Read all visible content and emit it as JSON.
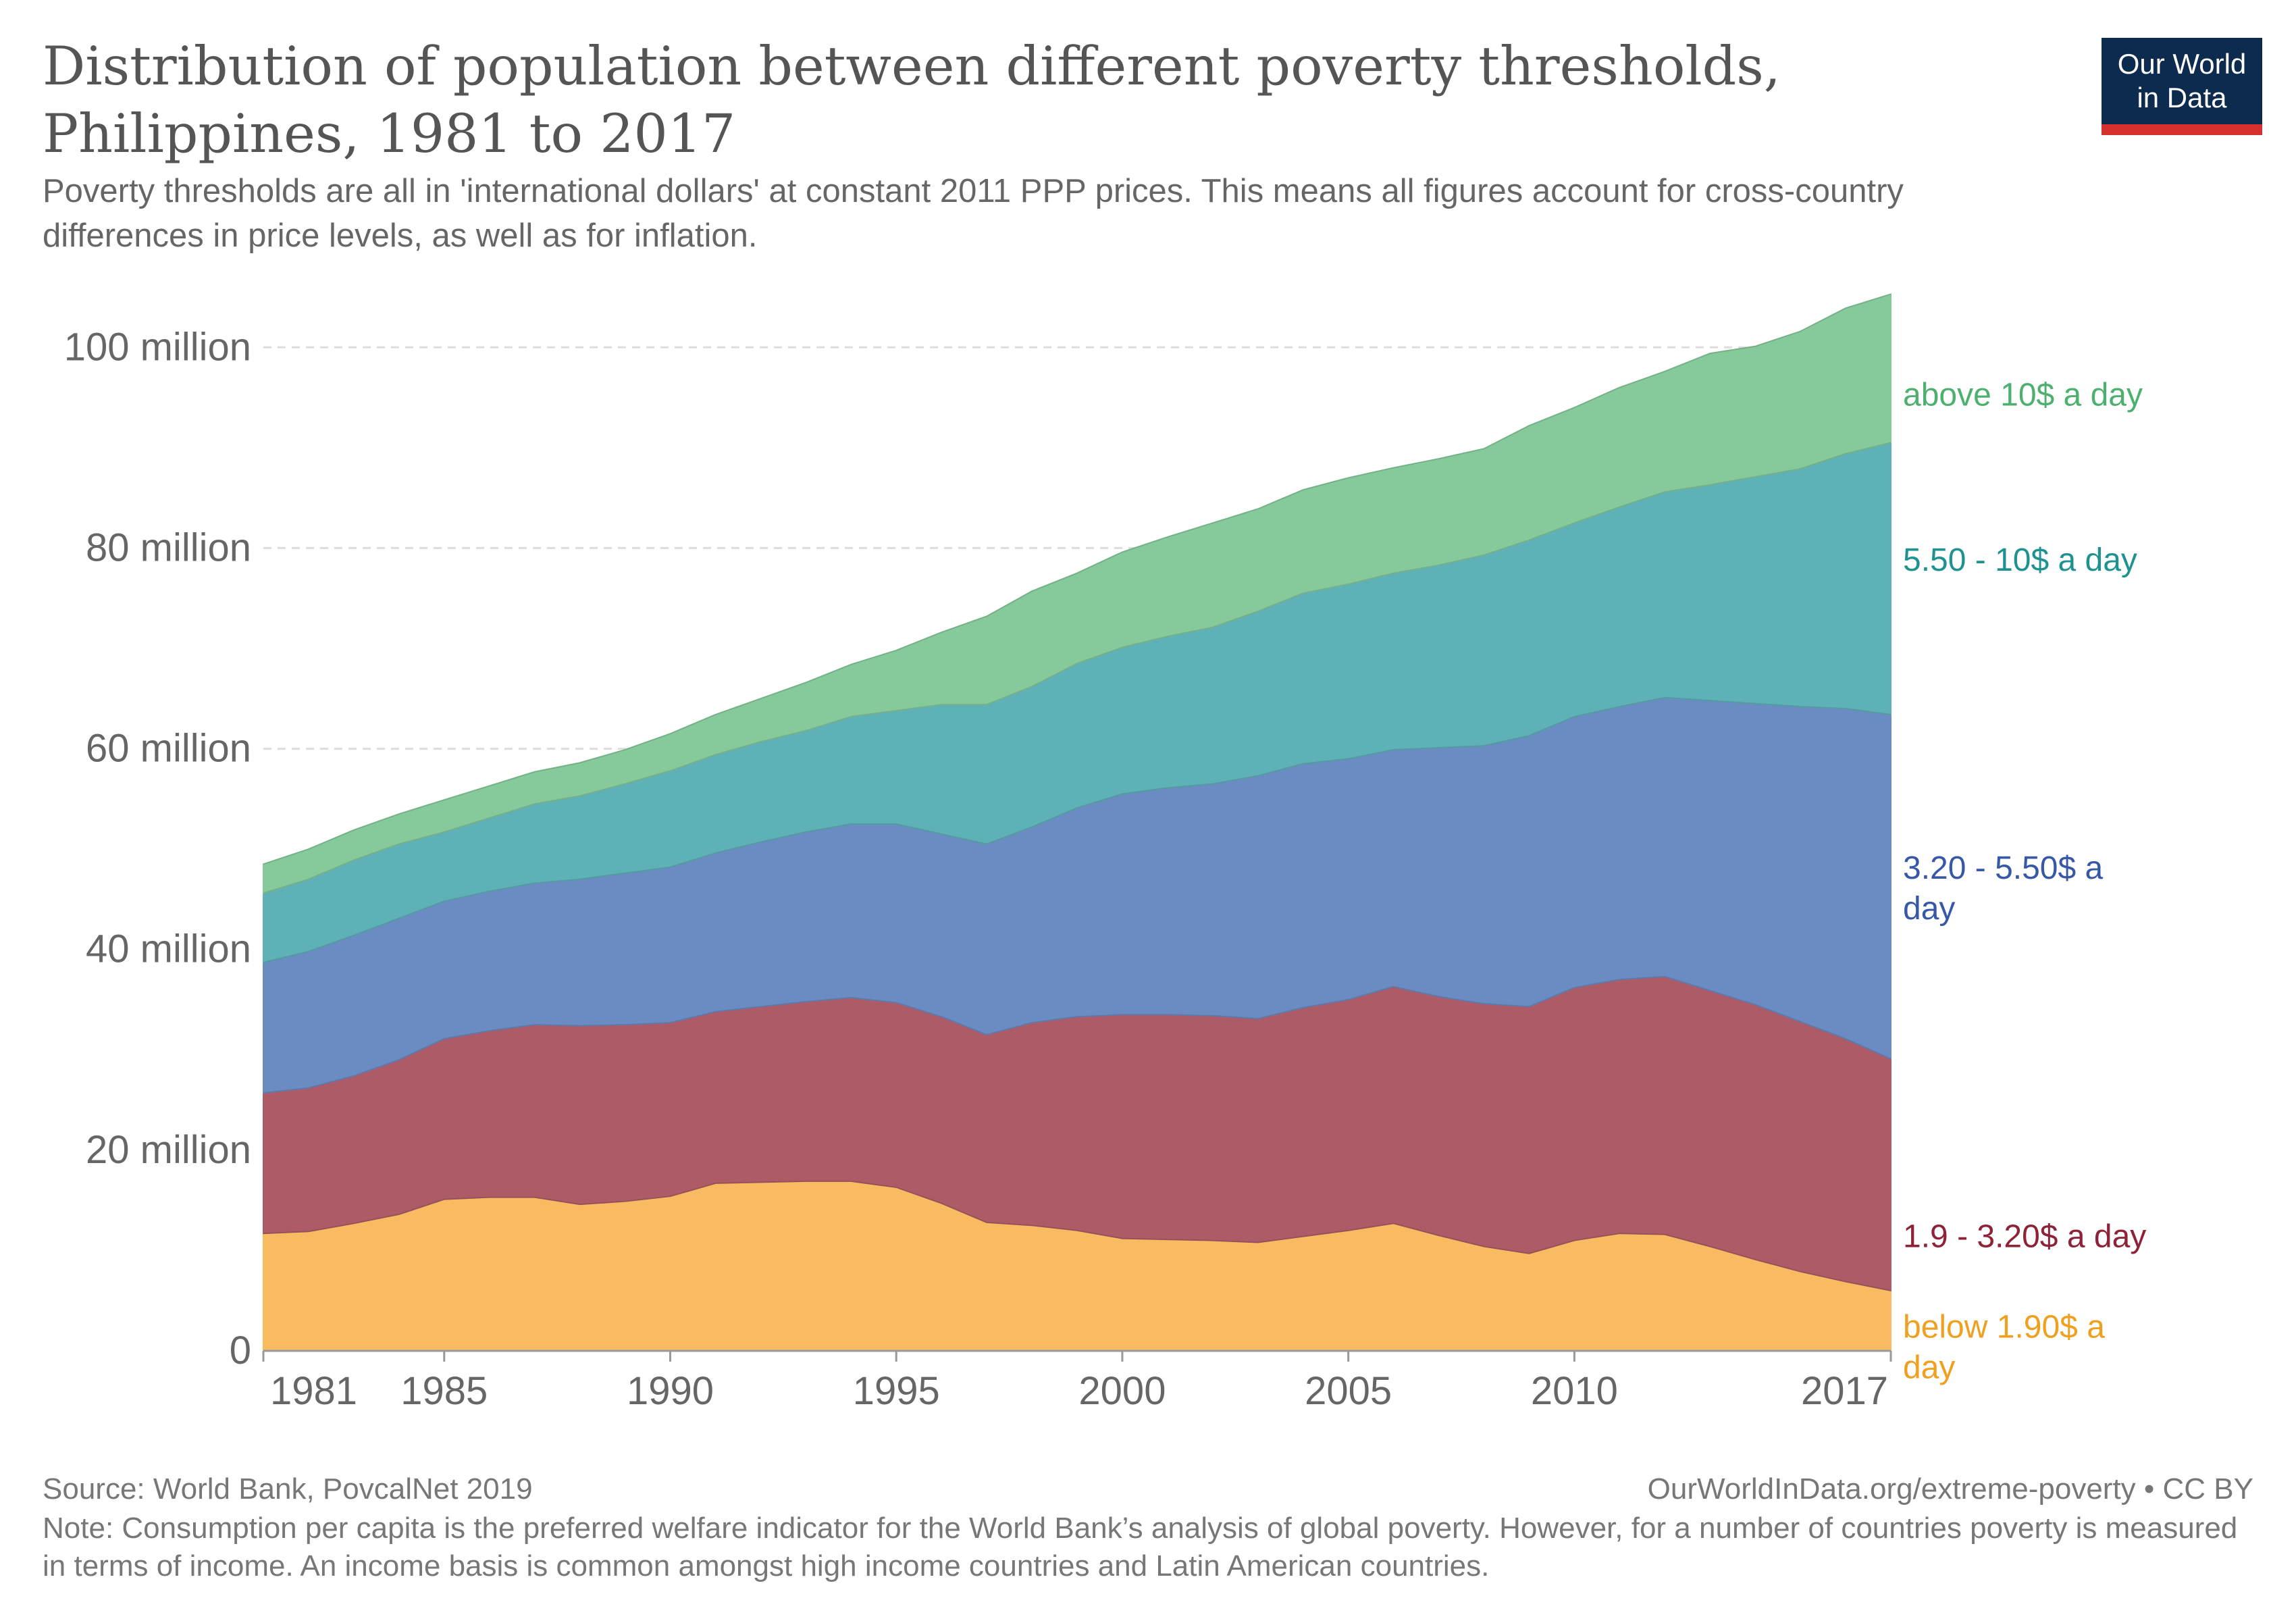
{
  "header": {
    "title": "Distribution of population between different poverty thresholds, Philippines, 1981 to 2017",
    "subtitle": "Poverty thresholds are all in 'international dollars' at constant 2011 PPP prices. This means all figures account for cross-country differences in price levels, as well as for inflation.",
    "logo_line1": "Our World",
    "logo_line2": "in Data"
  },
  "footer": {
    "source": "Source: World Bank, PovcalNet 2019",
    "attribution": "OurWorldInData.org/extreme-poverty • CC BY",
    "note": "Note: Consumption per capita is the preferred welfare indicator for the World Bank’s analysis of global poverty. However, for a number of countries poverty is measured in terms of income. An income basis is common amongst high income countries and Latin American countries."
  },
  "colors": {
    "below_190": "#f8bb62",
    "band_190_320": "#ad5c67",
    "band_320_550": "#6b8bc3",
    "band_550_10": "#5eb1b6",
    "above_10": "#86c99a",
    "label_below_190": "#f0a01e",
    "label_190_320": "#8e2236",
    "label_320_550": "#3658a6",
    "label_550_10": "#1e9191",
    "label_above_10": "#4db06e",
    "grid": "#dddddd",
    "axis_text": "#666666"
  },
  "chart_data": {
    "type": "area",
    "stacked": true,
    "x": [
      1981,
      1982,
      1983,
      1984,
      1985,
      1986,
      1987,
      1988,
      1989,
      1990,
      1991,
      1992,
      1993,
      1994,
      1995,
      1996,
      1997,
      1998,
      1999,
      2000,
      2001,
      2002,
      2003,
      2004,
      2005,
      2006,
      2007,
      2008,
      2009,
      2010,
      2011,
      2012,
      2013,
      2014,
      2015,
      2016,
      2017
    ],
    "x_ticks": [
      1981,
      1985,
      1990,
      1995,
      2000,
      2005,
      2010,
      2017
    ],
    "y_ticks": [
      {
        "value": 0,
        "label": "0"
      },
      {
        "value": 20000000,
        "label": "20 million"
      },
      {
        "value": 40000000,
        "label": "40 million"
      },
      {
        "value": 60000000,
        "label": "60 million"
      },
      {
        "value": 80000000,
        "label": "80 million"
      },
      {
        "value": 100000000,
        "label": "100 million"
      }
    ],
    "ylim": [
      0,
      105000000
    ],
    "grid": true,
    "legend": "inline-right",
    "series": [
      {
        "name": "below 1.90$ a day",
        "color_key": "below_190",
        "values": [
          11700000,
          11900000,
          12700000,
          13600000,
          15100000,
          15300000,
          15300000,
          14600000,
          14900000,
          15400000,
          16700000,
          16800000,
          16900000,
          16900000,
          16300000,
          14700000,
          12800000,
          12500000,
          12000000,
          11200000,
          11100000,
          11000000,
          10800000,
          11400000,
          12000000,
          12700000,
          11500000,
          10400000,
          9700000,
          11000000,
          11700000,
          11600000,
          10400000,
          9100000,
          7900000,
          6900000,
          6000000
        ]
      },
      {
        "name": "1.9 - 3.20$ a day",
        "color_key": "band_190_320",
        "values": [
          14000000,
          14300000,
          14700000,
          15400000,
          16000000,
          16600000,
          17200000,
          17800000,
          17600000,
          17300000,
          17100000,
          17500000,
          17900000,
          18300000,
          18400000,
          18600000,
          18700000,
          20200000,
          21300000,
          22300000,
          22400000,
          22400000,
          22300000,
          22800000,
          23000000,
          23600000,
          23800000,
          24200000,
          24600000,
          25200000,
          25300000,
          25700000,
          25500000,
          25400000,
          24900000,
          24200000,
          23100000
        ]
      },
      {
        "name": "3.20 - 5.50$ a day",
        "color_key": "band_320_550",
        "values": [
          13000000,
          13600000,
          14000000,
          14100000,
          13700000,
          13900000,
          14100000,
          14600000,
          15100000,
          15500000,
          15800000,
          16400000,
          16900000,
          17300000,
          17800000,
          18200000,
          19000000,
          19500000,
          20800000,
          22000000,
          22600000,
          23100000,
          24200000,
          24300000,
          24000000,
          23600000,
          24800000,
          25700000,
          27000000,
          27000000,
          27200000,
          27800000,
          28900000,
          30000000,
          31400000,
          32900000,
          34300000
        ]
      },
      {
        "name": "5.50 - 10$ a day",
        "color_key": "band_550_10",
        "values": [
          6900000,
          7200000,
          7500000,
          7400000,
          6900000,
          7300000,
          7900000,
          8300000,
          8900000,
          9600000,
          9800000,
          10000000,
          10100000,
          10700000,
          11300000,
          12900000,
          13900000,
          14000000,
          14400000,
          14600000,
          15100000,
          15600000,
          16400000,
          17000000,
          17400000,
          17600000,
          18200000,
          19000000,
          19500000,
          19300000,
          19900000,
          20500000,
          21500000,
          22600000,
          23700000,
          25400000,
          27100000
        ]
      },
      {
        "name": "above 10$ a day",
        "color_key": "above_10",
        "values": [
          2900000,
          3000000,
          3000000,
          3000000,
          3200000,
          3200000,
          3200000,
          3300000,
          3400000,
          3700000,
          4000000,
          4300000,
          4800000,
          5200000,
          6000000,
          7200000,
          8800000,
          9500000,
          9000000,
          9500000,
          9900000,
          10400000,
          10200000,
          10300000,
          10600000,
          10500000,
          10600000,
          10600000,
          11400000,
          11500000,
          11900000,
          12000000,
          13100000,
          13000000,
          13700000,
          14500000,
          14800000
        ]
      }
    ]
  }
}
